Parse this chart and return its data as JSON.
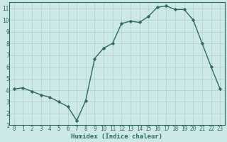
{
  "x": [
    0,
    1,
    2,
    3,
    4,
    5,
    6,
    7,
    8,
    9,
    10,
    11,
    12,
    13,
    14,
    15,
    16,
    17,
    18,
    19,
    20,
    21,
    22,
    23
  ],
  "y": [
    4.1,
    4.2,
    3.9,
    3.6,
    3.4,
    3.0,
    2.6,
    1.4,
    3.1,
    6.7,
    7.6,
    8.0,
    9.7,
    9.9,
    9.8,
    10.3,
    11.1,
    11.2,
    10.9,
    10.9,
    10.0,
    8.0,
    6.0,
    4.1
  ],
  "xlabel": "Humidex (Indice chaleur)",
  "line_color": "#2d6b5e",
  "marker": "D",
  "marker_size": 2.2,
  "bg_color": "#cce8e8",
  "grid_color": "#b0cccc",
  "tick_color": "#2d6b5e",
  "label_color": "#2d6b5e",
  "spine_color": "#2d6b5e",
  "xlim": [
    -0.5,
    23.5
  ],
  "ylim": [
    1,
    11.5
  ],
  "yticks": [
    1,
    2,
    3,
    4,
    5,
    6,
    7,
    8,
    9,
    10,
    11
  ],
  "xticks": [
    0,
    1,
    2,
    3,
    4,
    5,
    6,
    7,
    8,
    9,
    10,
    11,
    12,
    13,
    14,
    15,
    16,
    17,
    18,
    19,
    20,
    21,
    22,
    23
  ],
  "tick_fontsize": 5.5,
  "xlabel_fontsize": 6.5,
  "linewidth": 1.0
}
